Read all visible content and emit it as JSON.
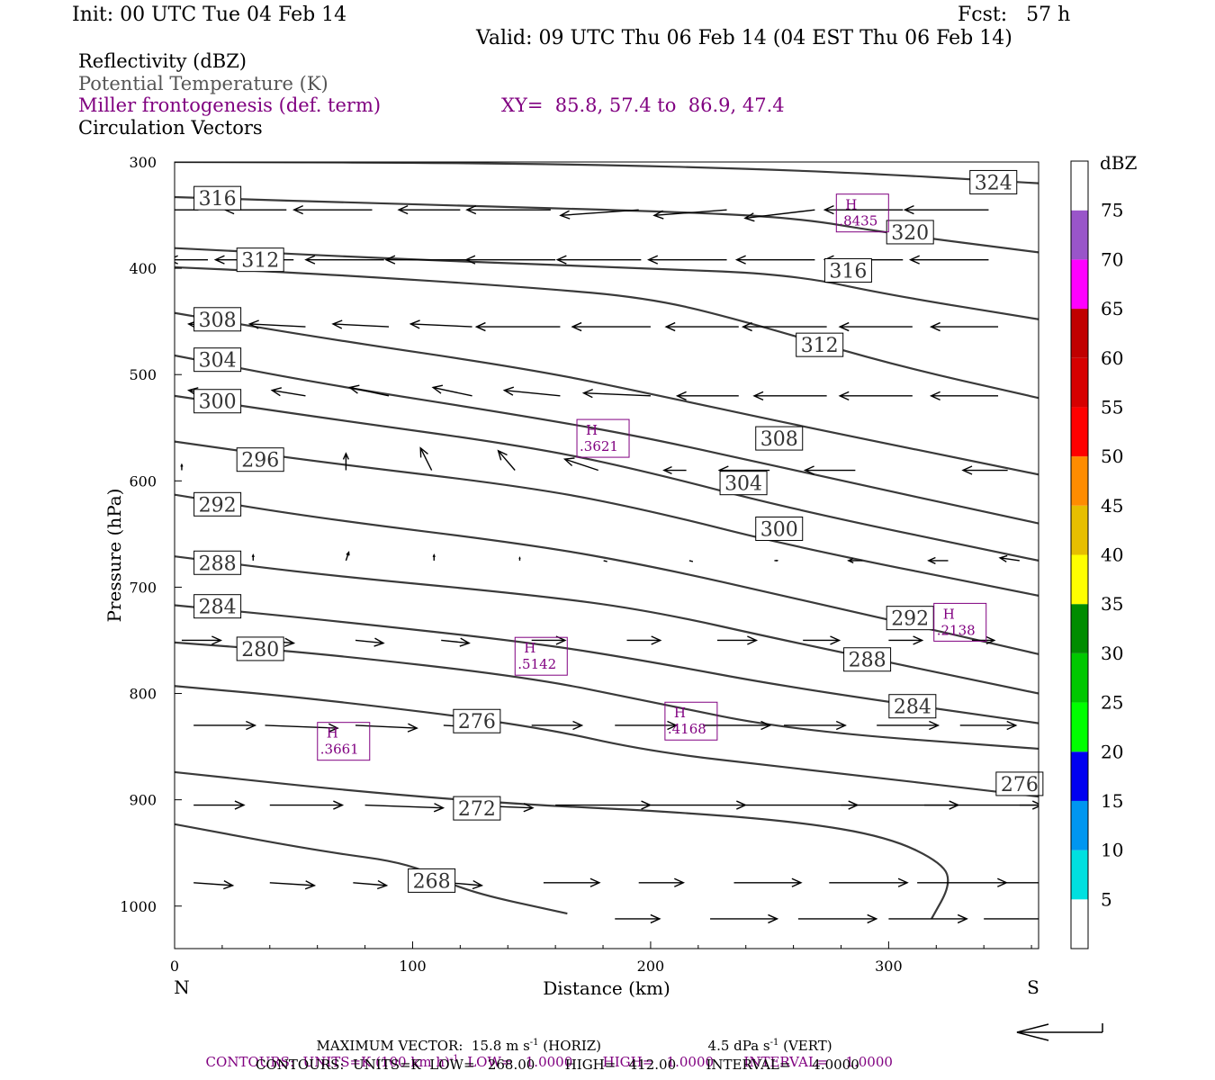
{
  "header": {
    "init": "Init: 00 UTC Tue 04 Feb 14",
    "fcst": "Fcst:   57 h",
    "valid": "Valid: 09 UTC Thu 06 Feb 14 (04 EST Thu 06 Feb 14)"
  },
  "fields": {
    "reflectivity": "Reflectivity (dBZ)",
    "theta": "Potential Temperature (K)",
    "miller": "Miller frontogenesis (def. term)",
    "xy": "XY=  85.8, 57.4 to  86.9, 47.4",
    "vectors": "Circulation Vectors"
  },
  "footer": {
    "max_vector": "MAXIMUM VECTOR:  15.8 m s",
    "max_vector_unit": "-1",
    "horiz": " (HORIZ)",
    "vert": "4.5 dPa s",
    "vert_unit": "-1",
    "vert_tail": " (VERT)",
    "contours1_a": "CONTOURS:  UNITS=K (100 km h)",
    "contours1_sup": "-1",
    "contours1_b": "  LOW=   1.0000       HIGH=   1.0000       INTERVAL=    1.0000",
    "contours2": "CONTOURS:  UNITS=K  LOW=   268.00       HIGH=   412.00       INTERVAL=     4.0000"
  },
  "colors": {
    "contour": "#3a3a3a",
    "purple": "#800080",
    "colorbar": [
      "#ffffff",
      "#00e0e0",
      "#0096f0",
      "#0000f0",
      "#00ff00",
      "#00c800",
      "#008c00",
      "#ffff00",
      "#e6be00",
      "#ff8c00",
      "#ff0000",
      "#d60000",
      "#c00000",
      "#ff00ff",
      "#9955c9",
      "#ffffff"
    ]
  },
  "chart_data": {
    "type": "cross-section",
    "xlabel": "Distance (km)",
    "ylabel": "Pressure (hPa)",
    "xlim": [
      0,
      363
    ],
    "ylim": [
      1040,
      300
    ],
    "x_ticks": [
      0,
      100,
      200,
      300
    ],
    "y_ticks": [
      300,
      400,
      500,
      600,
      700,
      800,
      900,
      1000
    ],
    "x_end_labels": {
      "left": "N",
      "right": "S"
    },
    "colorbar": {
      "title": "dBZ",
      "levels": [
        5,
        10,
        15,
        20,
        25,
        30,
        35,
        40,
        45,
        50,
        55,
        60,
        65,
        70,
        75
      ]
    },
    "theta_contours": [
      {
        "value": 324,
        "label": "324",
        "points": [
          [
            0,
            300
          ],
          [
            150,
            301
          ],
          [
            270,
            308
          ],
          [
            363,
            320
          ]
        ]
      },
      {
        "value": 320,
        "label": "320",
        "points": [
          [
            0,
            333
          ],
          [
            100,
            340
          ],
          [
            200,
            346
          ],
          [
            260,
            352
          ],
          [
            300,
            367
          ],
          [
            363,
            385
          ]
        ]
      },
      {
        "value": 316,
        "label": "316",
        "points": [
          [
            0,
            381
          ],
          [
            100,
            392
          ],
          [
            200,
            400
          ],
          [
            260,
            406
          ],
          [
            300,
            425
          ],
          [
            363,
            448
          ]
        ]
      },
      {
        "value": 312,
        "label": "312",
        "points": [
          [
            0,
            399
          ],
          [
            60,
            405
          ],
          [
            150,
            418
          ],
          [
            200,
            428
          ],
          [
            240,
            450
          ],
          [
            300,
            490
          ],
          [
            363,
            522
          ]
        ]
      },
      {
        "value": 308,
        "label": "308",
        "points": [
          [
            0,
            442
          ],
          [
            60,
            465
          ],
          [
            150,
            495
          ],
          [
            200,
            518
          ],
          [
            260,
            547
          ],
          [
            363,
            594
          ]
        ]
      },
      {
        "value": 304,
        "label": "304",
        "points": [
          [
            0,
            482
          ],
          [
            60,
            508
          ],
          [
            150,
            540
          ],
          [
            200,
            560
          ],
          [
            260,
            590
          ],
          [
            363,
            640
          ]
        ]
      },
      {
        "value": 300,
        "label": "300",
        "points": [
          [
            0,
            520
          ],
          [
            60,
            540
          ],
          [
            150,
            568
          ],
          [
            200,
            592
          ],
          [
            260,
            627
          ],
          [
            363,
            675
          ]
        ]
      },
      {
        "value": 296,
        "label": "296",
        "points": [
          [
            0,
            563
          ],
          [
            60,
            582
          ],
          [
            150,
            606
          ],
          [
            200,
            628
          ],
          [
            260,
            662
          ],
          [
            363,
            708
          ]
        ]
      },
      {
        "value": 292,
        "label": "292",
        "points": [
          [
            0,
            613
          ],
          [
            60,
            635
          ],
          [
            150,
            660
          ],
          [
            200,
            680
          ],
          [
            260,
            710
          ],
          [
            363,
            763
          ]
        ]
      },
      {
        "value": 288,
        "label": "288",
        "points": [
          [
            0,
            671
          ],
          [
            60,
            688
          ],
          [
            150,
            707
          ],
          [
            200,
            722
          ],
          [
            260,
            752
          ],
          [
            363,
            800
          ]
        ]
      },
      {
        "value": 284,
        "label": "284",
        "points": [
          [
            0,
            717
          ],
          [
            60,
            730
          ],
          [
            150,
            752
          ],
          [
            200,
            770
          ],
          [
            260,
            795
          ],
          [
            363,
            828
          ]
        ]
      },
      {
        "value": 280,
        "label": "280",
        "points": [
          [
            0,
            752
          ],
          [
            60,
            762
          ],
          [
            150,
            785
          ],
          [
            200,
            808
          ],
          [
            260,
            835
          ],
          [
            363,
            852
          ]
        ]
      },
      {
        "value": 276,
        "label": "276",
        "points": [
          [
            0,
            793
          ],
          [
            60,
            805
          ],
          [
            150,
            830
          ],
          [
            200,
            855
          ],
          [
            260,
            870
          ],
          [
            363,
            897
          ]
        ]
      },
      {
        "value": 272,
        "label": "272",
        "points": [
          [
            0,
            874
          ],
          [
            80,
            893
          ],
          [
            150,
            905
          ],
          [
            200,
            910
          ],
          [
            260,
            920
          ],
          [
            300,
            935
          ],
          [
            323,
            960
          ],
          [
            326,
            980
          ],
          [
            318,
            1012
          ]
        ]
      },
      {
        "value": 268,
        "label": "268",
        "points": [
          [
            0,
            923
          ],
          [
            60,
            948
          ],
          [
            100,
            960
          ],
          [
            120,
            985
          ],
          [
            165,
            1007
          ]
        ]
      }
    ],
    "theta_labels": [
      {
        "text": "316",
        "x": 18,
        "p": 334
      },
      {
        "text": "312",
        "x": 36,
        "p": 392
      },
      {
        "text": "308",
        "x": 18,
        "p": 448
      },
      {
        "text": "304",
        "x": 18,
        "p": 486
      },
      {
        "text": "300",
        "x": 18,
        "p": 525
      },
      {
        "text": "296",
        "x": 36,
        "p": 580
      },
      {
        "text": "292",
        "x": 18,
        "p": 622
      },
      {
        "text": "288",
        "x": 18,
        "p": 677
      },
      {
        "text": "284",
        "x": 18,
        "p": 718
      },
      {
        "text": "280",
        "x": 36,
        "p": 758
      },
      {
        "text": "276",
        "x": 127,
        "p": 826
      },
      {
        "text": "272",
        "x": 127,
        "p": 908
      },
      {
        "text": "268",
        "x": 108,
        "p": 976
      },
      {
        "text": "324",
        "x": 344,
        "p": 319
      },
      {
        "text": "320",
        "x": 309,
        "p": 366
      },
      {
        "text": "316",
        "x": 283,
        "p": 402
      },
      {
        "text": "312",
        "x": 271,
        "p": 472
      },
      {
        "text": "308",
        "x": 254,
        "p": 560
      },
      {
        "text": "304",
        "x": 239,
        "p": 602
      },
      {
        "text": "300",
        "x": 254,
        "p": 645
      },
      {
        "text": "292",
        "x": 309,
        "p": 729
      },
      {
        "text": "288",
        "x": 291,
        "p": 768
      },
      {
        "text": "284",
        "x": 310,
        "p": 812
      },
      {
        "text": "276",
        "x": 355,
        "p": 885
      }
    ],
    "frontogenesis_maxima": [
      {
        "label": "H",
        "value": ".8435",
        "x": 289,
        "p": 348
      },
      {
        "label": "H",
        "value": ".3621",
        "x": 180,
        "p": 560
      },
      {
        "label": "H",
        "value": ".2138",
        "x": 330,
        "p": 733
      },
      {
        "label": "H",
        "value": ".5142",
        "x": 154,
        "p": 765
      },
      {
        "label": "H",
        "value": ".4168",
        "x": 217,
        "p": 826
      },
      {
        "label": "H",
        "value": ".3661",
        "x": 71,
        "p": 845
      }
    ],
    "vectors": [
      {
        "p": 345,
        "x": [
          10,
          47,
          83,
          120,
          158,
          195,
          232,
          269,
          306,
          342
        ],
        "u": [
          -26,
          -22,
          -28,
          -22,
          -30,
          -28,
          -26,
          -25,
          -28,
          -30
        ],
        "w": [
          0,
          0,
          0,
          0,
          0,
          2,
          2,
          3,
          0,
          0
        ]
      },
      {
        "p": 392,
        "x": [
          14,
          50,
          88,
          124,
          160,
          196,
          232,
          269,
          306,
          342
        ],
        "u": [
          -14,
          -28,
          -28,
          -30,
          -32,
          -30,
          -28,
          -28,
          -28,
          -28
        ],
        "w": [
          0,
          0,
          0,
          0,
          0,
          0,
          0,
          0,
          0,
          0
        ]
      },
      {
        "p": 455,
        "x": [
          20,
          55,
          90,
          125,
          162,
          200,
          237,
          274,
          310,
          346
        ],
        "u": [
          -12,
          -20,
          -20,
          -22,
          -30,
          -28,
          -26,
          -30,
          -26,
          -24
        ],
        "w": [
          -1,
          -1,
          -1,
          -1,
          0,
          0,
          0,
          0,
          0,
          0
        ]
      },
      {
        "p": 520,
        "x": [
          20,
          55,
          90,
          125,
          162,
          200,
          237,
          274,
          310,
          346
        ],
        "u": [
          -12,
          -12,
          -14,
          -14,
          -20,
          -24,
          -22,
          -26,
          -26,
          -24
        ],
        "w": [
          -2,
          -2,
          -3,
          -3,
          -2,
          -1,
          0,
          0,
          0,
          0
        ]
      },
      {
        "p": 590,
        "x": [
          3,
          35,
          72,
          108,
          143,
          178,
          215,
          250,
          286,
          350
        ],
        "u": [
          0,
          0,
          0,
          -4,
          -6,
          -12,
          -8,
          -18,
          -18,
          -16
        ],
        "w": [
          -2,
          -5,
          -6,
          -8,
          -7,
          -4,
          0,
          0,
          0,
          0
        ]
      },
      {
        "p": 675,
        "x": [
          33,
          72,
          109,
          145,
          181,
          217,
          252,
          289,
          325,
          355
        ],
        "u": [
          0,
          1,
          0,
          0,
          0,
          0,
          1,
          -5,
          -7,
          -7
        ],
        "w": [
          -2,
          -3,
          -2,
          -1,
          0,
          0,
          0,
          0,
          0,
          -1
        ]
      },
      {
        "p": 750,
        "x": [
          3,
          36,
          76,
          112,
          150,
          190,
          228,
          264,
          300,
          335
        ],
        "u": [
          14,
          12,
          10,
          10,
          12,
          12,
          14,
          13,
          12,
          8
        ],
        "w": [
          0,
          1,
          1,
          1,
          0,
          0,
          0,
          0,
          0,
          0
        ]
      },
      {
        "p": 830,
        "x": [
          8,
          38,
          76,
          113,
          150,
          185,
          222,
          256,
          295,
          330
        ],
        "u": [
          22,
          26,
          22,
          20,
          18,
          22,
          24,
          22,
          22,
          20
        ],
        "w": [
          0,
          1,
          1,
          1,
          0,
          0,
          0,
          0,
          0,
          0
        ]
      },
      {
        "p": 905,
        "x": [
          8,
          40,
          80,
          120,
          160,
          200,
          240,
          280,
          315,
          355
        ],
        "u": [
          18,
          26,
          28,
          26,
          34,
          34,
          40,
          42,
          42,
          40
        ],
        "w": [
          0,
          0,
          1,
          1,
          0,
          0,
          0,
          0,
          0,
          0
        ]
      },
      {
        "p": 978,
        "x": [
          8,
          40,
          75,
          115,
          155,
          195,
          235,
          275,
          312,
          348
        ],
        "u": [
          14,
          16,
          12,
          12,
          20,
          16,
          24,
          28,
          32,
          34
        ],
        "w": [
          1,
          1,
          1,
          1,
          0,
          0,
          0,
          0,
          0,
          0
        ]
      },
      {
        "p": 1012,
        "x": [
          185,
          225,
          262,
          300,
          340
        ],
        "u": [
          16,
          24,
          28,
          28,
          32
        ],
        "w": [
          0,
          0,
          0,
          0,
          0
        ]
      }
    ]
  }
}
